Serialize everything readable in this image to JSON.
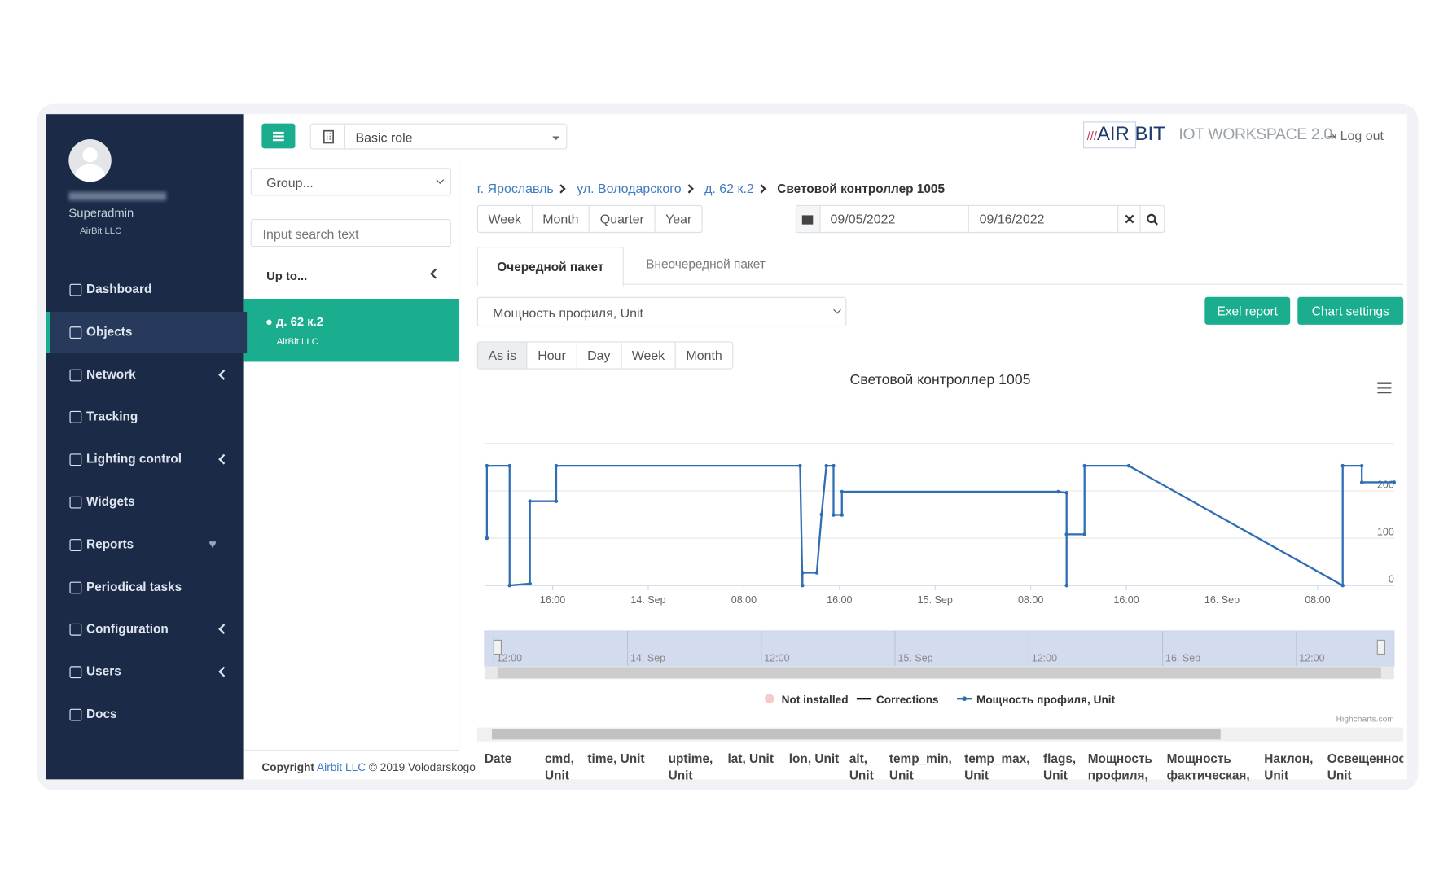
{
  "sidebar": {
    "role": "Superadmin",
    "company": "AirBit LLC",
    "active_index": 1,
    "menu": [
      {
        "label": "Dashboard",
        "submenu": false
      },
      {
        "label": "Objects",
        "submenu": false
      },
      {
        "label": "Network",
        "submenu": true
      },
      {
        "label": "Tracking",
        "submenu": false
      },
      {
        "label": "Lighting control",
        "submenu": true
      },
      {
        "label": "Widgets",
        "submenu": false
      },
      {
        "label": "Reports",
        "submenu": false,
        "favorite": true
      },
      {
        "label": "Periodical tasks",
        "submenu": false
      },
      {
        "label": "Configuration",
        "submenu": true
      },
      {
        "label": "Users",
        "submenu": true
      },
      {
        "label": "Docs",
        "submenu": false
      }
    ]
  },
  "header": {
    "role_select": "Basic role",
    "logo_left": "AIR",
    "logo_right": "BIT",
    "product": "IOT WORKSPACE 2.0",
    "logout": "Log out"
  },
  "objects_panel": {
    "group_placeholder": "Group...",
    "search_placeholder": "Input search text",
    "up_to": "Up to...",
    "selected": {
      "name": "д. 62 к.2",
      "company": "AirBit LLC"
    }
  },
  "footer": {
    "copyright": "Copyright",
    "link": "Airbit LLC",
    "rest": "© 2019 Volodarskogo"
  },
  "breadcrumb": [
    "г. Ярославль",
    "ул. Володарского",
    "д. 62 к.2",
    "Световой контроллер 1005"
  ],
  "periods": [
    "Week",
    "Month",
    "Quarter",
    "Year"
  ],
  "date_from": "09/05/2022",
  "date_to": "09/16/2022",
  "tabs": [
    "Очередной пакет",
    "Внеочередной пакет"
  ],
  "parameter_select": "Мощность профиля, Unit",
  "buttons": {
    "excel": "Exel report",
    "settings": "Chart settings"
  },
  "aggregation": [
    "As is",
    "Hour",
    "Day",
    "Week",
    "Month"
  ],
  "chart_data": {
    "type": "line",
    "title": "Световой контроллер 1005",
    "x": [
      10.5,
      10.5,
      12.4,
      12.4,
      14.1,
      14.1,
      16.3,
      16.3,
      36.7,
      36.9,
      36.9,
      38.1,
      38.5,
      38.9,
      39.5,
      39.5,
      40.2,
      40.2,
      58.3,
      59.0,
      59.0,
      59.0,
      60.5,
      60.5,
      64.2,
      82.1,
      82.1,
      83.7,
      83.7,
      86.4
    ],
    "series": [
      {
        "name": "Мощность профиля, Unit",
        "color": "#2f6db5",
        "values": [
          100,
          253,
          253,
          0,
          4,
          178,
          178,
          253,
          253,
          0,
          27,
          27,
          150,
          253,
          253,
          149,
          149,
          198,
          198,
          196,
          0,
          108,
          108,
          253,
          253,
          0,
          253,
          253,
          218,
          218
        ]
      }
    ],
    "legend_extra": [
      {
        "name": "Not installed",
        "color": "#f7caca"
      },
      {
        "name": "Corrections",
        "color": "#111111"
      }
    ],
    "xlim": [
      10.3,
      86.4
    ],
    "xticks": [
      {
        "value": 16,
        "label": "16:00"
      },
      {
        "value": 24,
        "label": "14. Sep"
      },
      {
        "value": 32,
        "label": "08:00"
      },
      {
        "value": 40,
        "label": "16:00"
      },
      {
        "value": 48,
        "label": "15. Sep"
      },
      {
        "value": 56,
        "label": "08:00"
      },
      {
        "value": 64,
        "label": "16:00"
      },
      {
        "value": 72,
        "label": "16. Sep"
      },
      {
        "value": 80,
        "label": "08:00"
      }
    ],
    "ylim": [
      0,
      300
    ],
    "yticks": [
      0,
      100,
      200
    ],
    "grid": true,
    "navigator_labels": [
      "12:00",
      "14. Sep",
      "12:00",
      "15. Sep",
      "12:00",
      "16. Sep",
      "12:00"
    ],
    "credits": "Highcharts.com"
  },
  "table": {
    "headers": [
      "Date",
      "cmd, Unit",
      "time, Unit",
      "uptime, Unit",
      "lat, Unit",
      "lon, Unit",
      "alt, Unit",
      "temp_min, Unit",
      "temp_max, Unit",
      "flags, Unit",
      "Мощность профиля, Unit",
      "Мощность фактическая, Unit",
      "Наклон, Unit",
      "Освещенность, Unit"
    ]
  }
}
